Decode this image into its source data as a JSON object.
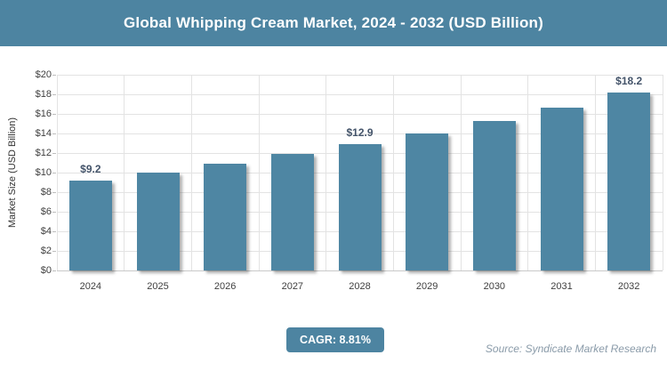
{
  "header": {
    "title": "Global Whipping Cream Market, 2024 - 2032 (USD Billion)"
  },
  "chart_data": {
    "type": "bar",
    "title": "Global Whipping Cream Market, 2024 - 2032 (USD Billion)",
    "categories": [
      "2024",
      "2025",
      "2026",
      "2027",
      "2028",
      "2029",
      "2030",
      "2031",
      "2032"
    ],
    "values": [
      9.2,
      10.0,
      10.9,
      11.9,
      12.9,
      14.0,
      15.3,
      16.6,
      18.2
    ],
    "point_labels": [
      "$9.2",
      null,
      null,
      null,
      "$12.9",
      null,
      null,
      null,
      "$18.2"
    ],
    "xlabel": "",
    "ylabel": "Market Size (USD Billion)",
    "ylim": [
      0,
      20
    ],
    "ytick_step": 2,
    "ytick_labels": [
      "$0",
      "$2",
      "$4",
      "$6",
      "$8",
      "$10",
      "$12",
      "$14",
      "$16",
      "$18",
      "$20"
    ],
    "grid": true,
    "legend": false
  },
  "footer": {
    "cagr_label": "CAGR: 8.81%",
    "source": "Source: Syndicate Market Research"
  },
  "colors": {
    "header_bg": "#4d84a1",
    "bar_fill": "#4e86a3",
    "badge_bg": "#4d84a1",
    "data_label": "#44546a",
    "axis_text": "#3f3f3f",
    "gridline": "#e3e3e3",
    "source_text": "#8a9ba9"
  }
}
